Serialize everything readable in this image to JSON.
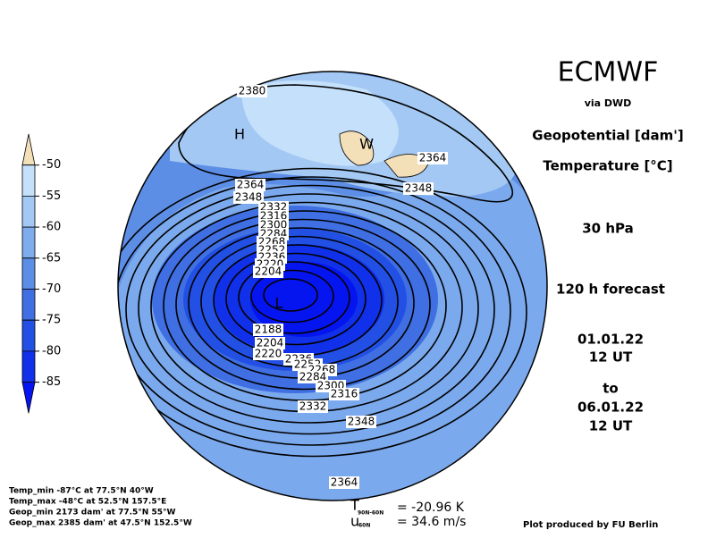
{
  "header": {
    "title": "ECMWF",
    "source": "via DWD"
  },
  "fields": [
    "Geopotential [dam']",
    "Temperature [°C]"
  ],
  "level": "30 hPa",
  "forecast": "120 h forecast",
  "init": {
    "date": "01.01.22",
    "time": "12 UT"
  },
  "to": "to",
  "valid": {
    "date": "06.01.22",
    "time": "12 UT"
  },
  "colorbar": {
    "labels": [
      -50,
      -55,
      -60,
      -65,
      -70,
      -75,
      -80,
      -85
    ],
    "colors": [
      "#f3dfb8",
      "#c4e0fb",
      "#a3c8f3",
      "#7eaced",
      "#5c8ee6",
      "#3f6fe2",
      "#2350e4",
      "#1030ea",
      "#0515f0"
    ]
  },
  "markers": [
    "H",
    "W",
    "L"
  ],
  "contour_labels": [
    "2380",
    "2364",
    "2348",
    "2364",
    "2348",
    "2332",
    "2316",
    "2300",
    "2284",
    "2268",
    "2252",
    "2236",
    "2220",
    "2204",
    "2188",
    "2204",
    "2220",
    "2236",
    "2252",
    "2268",
    "2284",
    "2300",
    "2316",
    "2332",
    "2348",
    "2364"
  ],
  "stats": [
    "Temp_min -87°C at 77.5°N 40°W",
    "Temp_max -48°C at 52.5°N 157.5°E",
    "Geop_min 2173 dam' at 77.5°N 55°W",
    "Geop_max 2385 dam' at 47.5°N 152.5°W"
  ],
  "mean": {
    "t_symbol": "T",
    "t_sub": "90N-60N",
    "t_value": "= -20.96 K",
    "u_symbol": "u",
    "u_sub": "60N",
    "u_value": "= 34.6 m/s"
  },
  "credit": "Plot produced by FU Berlin"
}
